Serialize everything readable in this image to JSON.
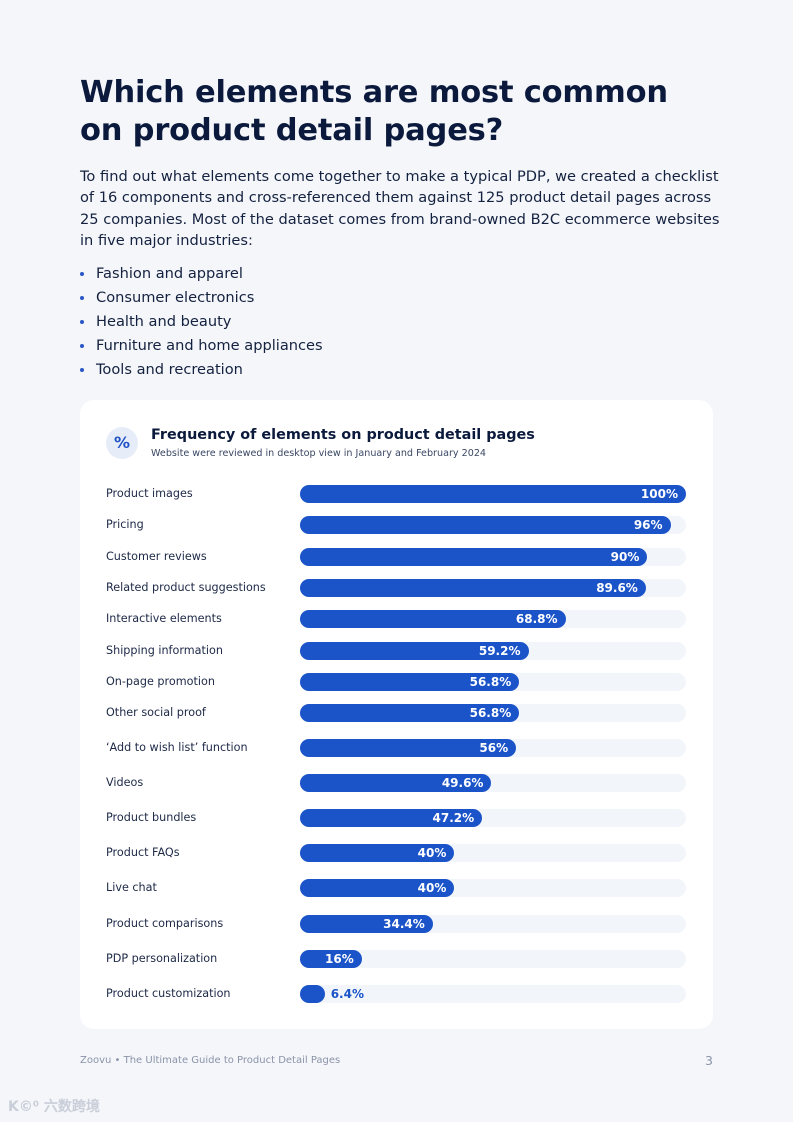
{
  "heading": "Which elements are most common on product detail pages?",
  "intro": "To find out what elements come together to make a typical PDP, we created a checklist of 16 components and cross-referenced them against 125 product detail pages across 25 companies. Most of the dataset comes from brand-owned B2C ecommerce websites in five major industries:",
  "industries": [
    "Fashion and apparel",
    "Consumer electronics",
    "Health and beauty",
    "Furniture and home appliances",
    "Tools and recreation"
  ],
  "card": {
    "icon_label": "%"
  },
  "chart_data": {
    "type": "bar",
    "orientation": "horizontal",
    "title": "Frequency of elements on product detail pages",
    "subtitle": "Website were reviewed in desktop view in January and February 2024",
    "categories": [
      "Product images",
      "Pricing",
      "Customer reviews",
      "Related product suggestions",
      "Interactive elements",
      "Shipping information",
      "On-page promotion",
      "Other social proof",
      "‘Add to wish list’ function",
      "Videos",
      "Product bundles",
      "Product FAQs",
      "Live chat",
      "Product comparisons",
      "PDP personalization",
      "Product customization"
    ],
    "values": [
      100,
      96,
      90,
      89.6,
      68.8,
      59.2,
      56.8,
      56.8,
      56,
      49.6,
      47.2,
      40,
      40,
      34.4,
      16,
      6.4
    ],
    "value_labels": [
      "100%",
      "96%",
      "90%",
      "89.6%",
      "68.8%",
      "59.2%",
      "56.8%",
      "56.8%",
      "56%",
      "49.6%",
      "47.2%",
      "40%",
      "40%",
      "34.4%",
      "16%",
      "6.4%"
    ],
    "xlim": [
      0,
      100
    ],
    "bar_color": "#1b54c8",
    "track_color": "#f2f5fa"
  },
  "footer": {
    "text": "Zoovu • The Ultimate Guide to Product Detail Pages",
    "page_number": "3"
  },
  "watermark": "K©⁰ 六数跨境"
}
